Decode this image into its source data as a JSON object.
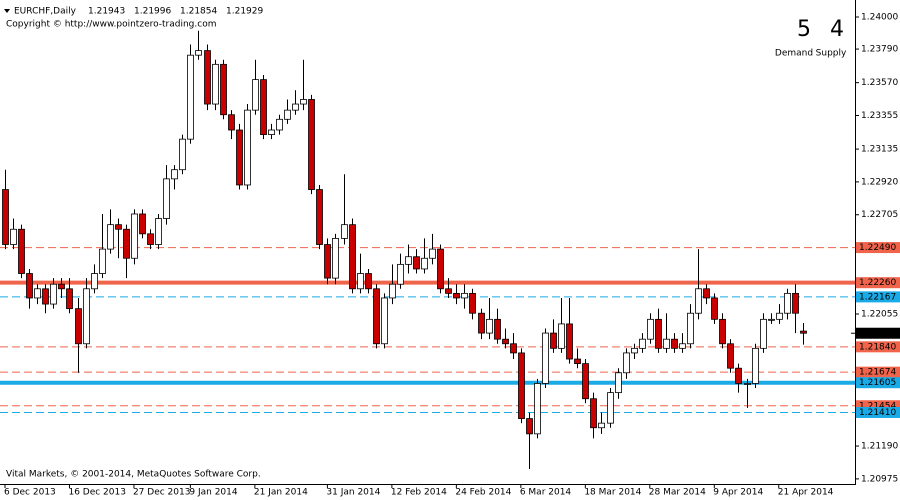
{
  "chart_data": {
    "type": "candlestick",
    "symbol_label": "EURCHF,Daily",
    "copyright": "Copyright © http://www.pointzero-trading.com",
    "footer": "Vital Markets, © 2001-2014, MetaQuotes Software Corp.",
    "zones": {
      "demand": {
        "count": 5,
        "label": "Demand"
      },
      "supply": {
        "count": 4,
        "label": "Supply"
      }
    },
    "demand_color": "#1aaae6",
    "supply_color": "#f0644c",
    "up_color": "#ffffff",
    "down_color": "#c80000",
    "grid": false,
    "ylim": [
      1.20935,
      1.24059
    ],
    "yticks": [
      {
        "value": 1.24,
        "label": "1.24000"
      },
      {
        "value": 1.2379,
        "label": "1.23790"
      },
      {
        "value": 1.2357,
        "label": "1.23570"
      },
      {
        "value": 1.23355,
        "label": "1.23355"
      },
      {
        "value": 1.23135,
        "label": "1.23135"
      },
      {
        "value": 1.2292,
        "label": "1.22920"
      },
      {
        "value": 1.22705,
        "label": "1.22705"
      },
      {
        "value": 1.22055,
        "label": "1.22055"
      },
      {
        "value": 1.2119,
        "label": "1.21190"
      },
      {
        "value": 1.20975,
        "label": "1.20975"
      }
    ],
    "categories": [
      "6 Dec 2013",
      null,
      null,
      null,
      null,
      null,
      null,
      null,
      "16 Dec 2013",
      null,
      null,
      null,
      null,
      null,
      null,
      null,
      "27 Dec 2013",
      null,
      null,
      null,
      null,
      null,
      null,
      "9 Jan 2014",
      null,
      null,
      null,
      null,
      null,
      null,
      null,
      "21 Jan 2014",
      null,
      null,
      null,
      null,
      null,
      null,
      null,
      null,
      "31 Jan 2014",
      null,
      null,
      null,
      null,
      null,
      null,
      null,
      "12 Feb 2014",
      null,
      null,
      null,
      null,
      null,
      null,
      null,
      "24 Feb 2014",
      null,
      null,
      null,
      null,
      null,
      null,
      null,
      "6 Mar 2014",
      null,
      null,
      null,
      null,
      null,
      null,
      null,
      "18 Mar 2014",
      null,
      null,
      null,
      null,
      null,
      null,
      null,
      "28 Mar 2014",
      null,
      null,
      null,
      null,
      null,
      null,
      null,
      "9 Apr 2014",
      null,
      null,
      null,
      null,
      null,
      null,
      null,
      "21 Apr 2014",
      null,
      null,
      null
    ],
    "open": [
      1.2287,
      1.2251,
      1.2261,
      1.2232,
      1.2216,
      1.2222,
      1.2212,
      1.2225,
      1.2222,
      1.2209,
      1.2186,
      1.2222,
      1.2232,
      1.2248,
      1.2264,
      1.2261,
      1.2242,
      1.2271,
      1.2258,
      1.2251,
      1.2268,
      1.2294,
      1.23,
      1.232,
      1.2375,
      1.2378,
      1.2343,
      1.2369,
      1.2336,
      1.2326,
      1.229,
      1.2339,
      1.2359,
      1.2323,
      1.2326,
      1.2333,
      1.2339,
      1.2343,
      1.2346,
      1.2287,
      1.2251,
      1.2229,
      1.2255,
      1.2264,
      1.2222,
      1.2232,
      1.2222,
      1.2186,
      1.2216,
      1.2225,
      1.2238,
      1.2243,
      1.2235,
      1.2242,
      1.2248,
      1.2222,
      1.2219,
      1.2216,
      1.2219,
      1.2206,
      1.2193,
      1.2202,
      1.2189,
      1.2186,
      1.218,
      1.2137,
      1.2127,
      1.216,
      1.2193,
      1.2183,
      1.2199,
      1.2176,
      1.2173,
      1.215,
      1.2131,
      1.2134,
      1.2154,
      1.2167,
      1.218,
      1.2183,
      1.2189,
      1.2202,
      1.2183,
      1.2189,
      1.2183,
      1.2186,
      1.2206,
      1.2222,
      1.2216,
      1.2202,
      1.2186,
      1.217,
      1.216,
      1.216,
      1.2183,
      1.2202,
      1.2202,
      1.2206,
      1.2219,
      1.21943
    ],
    "high": [
      1.23,
      1.2268,
      1.2264,
      1.2235,
      1.2225,
      1.2225,
      1.2229,
      1.2229,
      1.2229,
      1.2216,
      1.2229,
      1.2238,
      1.2271,
      1.2274,
      1.2268,
      1.2264,
      1.2274,
      1.2274,
      1.2261,
      1.2271,
      1.2303,
      1.2303,
      1.2323,
      1.2382,
      1.2391,
      1.2382,
      1.2372,
      1.2372,
      1.2339,
      1.233,
      1.2343,
      1.2372,
      1.2362,
      1.233,
      1.2336,
      1.2346,
      1.2352,
      1.2372,
      1.2349,
      1.229,
      1.2255,
      1.2258,
      1.2297,
      1.2268,
      1.2245,
      1.2235,
      1.2225,
      1.2219,
      1.2238,
      1.2245,
      1.2251,
      1.2248,
      1.2255,
      1.2258,
      1.2251,
      1.2229,
      1.2225,
      1.2225,
      1.2222,
      1.2209,
      1.2216,
      1.2209,
      1.2196,
      1.2193,
      1.2183,
      1.2141,
      1.2163,
      1.2196,
      1.2202,
      1.2216,
      1.2216,
      1.2183,
      1.2176,
      1.2154,
      1.2141,
      1.2157,
      1.217,
      1.2183,
      1.2186,
      1.2193,
      1.2206,
      1.2209,
      1.2206,
      1.2193,
      1.2193,
      1.2212,
      1.2248,
      1.2225,
      1.2219,
      1.2206,
      1.2189,
      1.2173,
      1.2163,
      1.2186,
      1.2206,
      1.2206,
      1.2212,
      1.2222,
      1.2225,
      1.21996
    ],
    "low": [
      1.2248,
      1.2248,
      1.2229,
      1.2209,
      1.2212,
      1.2206,
      1.2209,
      1.2216,
      1.2206,
      1.2167,
      1.2183,
      1.2219,
      1.2229,
      1.2245,
      1.2242,
      1.2229,
      1.2238,
      1.2255,
      1.2248,
      1.2248,
      1.2264,
      1.2287,
      1.2297,
      1.2317,
      1.2372,
      1.2339,
      1.2339,
      1.2333,
      1.232,
      1.2287,
      1.2287,
      1.2336,
      1.232,
      1.232,
      1.2323,
      1.233,
      1.2336,
      1.2339,
      1.2284,
      1.2248,
      1.2225,
      1.2225,
      1.2251,
      1.2219,
      1.2219,
      1.2219,
      1.2183,
      1.2183,
      1.2212,
      1.2222,
      1.2232,
      1.2232,
      1.2232,
      1.2238,
      1.2219,
      1.2216,
      1.2212,
      1.2209,
      1.2202,
      1.2189,
      1.2189,
      1.2186,
      1.2183,
      1.2176,
      1.2134,
      1.2104,
      1.2124,
      1.2157,
      1.218,
      1.218,
      1.2173,
      1.217,
      1.2147,
      1.2124,
      1.2127,
      1.2131,
      1.215,
      1.2163,
      1.2176,
      1.218,
      1.2186,
      1.218,
      1.218,
      1.218,
      1.218,
      1.2183,
      1.2202,
      1.2212,
      1.2199,
      1.2183,
      1.2167,
      1.2154,
      1.2144,
      1.2157,
      1.218,
      1.2199,
      1.2199,
      1.2202,
      1.2193,
      1.21854
    ],
    "close": [
      1.2251,
      1.2261,
      1.2232,
      1.2216,
      1.2222,
      1.2212,
      1.2225,
      1.2222,
      1.2209,
      1.2186,
      1.2222,
      1.2232,
      1.2248,
      1.2264,
      1.2261,
      1.2242,
      1.2271,
      1.2258,
      1.2251,
      1.2268,
      1.2294,
      1.23,
      1.232,
      1.2375,
      1.2378,
      1.2343,
      1.2369,
      1.2336,
      1.2326,
      1.229,
      1.2339,
      1.2359,
      1.2323,
      1.2326,
      1.2333,
      1.2339,
      1.2343,
      1.2346,
      1.2287,
      1.2251,
      1.2229,
      1.2255,
      1.2264,
      1.2222,
      1.2232,
      1.2222,
      1.2186,
      1.2216,
      1.2225,
      1.2238,
      1.2243,
      1.2235,
      1.2242,
      1.2248,
      1.2222,
      1.2219,
      1.2216,
      1.2219,
      1.2206,
      1.2193,
      1.2202,
      1.2189,
      1.2186,
      1.218,
      1.2137,
      1.2127,
      1.216,
      1.2193,
      1.2183,
      1.2199,
      1.2176,
      1.2173,
      1.215,
      1.2131,
      1.2134,
      1.2154,
      1.2167,
      1.218,
      1.2183,
      1.2189,
      1.2202,
      1.2183,
      1.2189,
      1.2183,
      1.2186,
      1.2206,
      1.2222,
      1.2216,
      1.2202,
      1.2186,
      1.217,
      1.216,
      1.216,
      1.2183,
      1.2202,
      1.2202,
      1.2206,
      1.2219,
      1.2206,
      1.21929
    ],
    "levels": [
      {
        "value": 1.2249,
        "label": "1.22490",
        "kind": "supply",
        "style": "dashed"
      },
      {
        "value": 1.2226,
        "label": "1.22260",
        "kind": "supply",
        "style": "thick"
      },
      {
        "value": 1.22167,
        "label": "1.22167",
        "kind": "demand",
        "style": "dashed"
      },
      {
        "value": 1.2184,
        "label": "1.21840",
        "kind": "supply",
        "style": "dashed"
      },
      {
        "value": 1.21674,
        "label": "1.21674",
        "kind": "supply",
        "style": "dashed"
      },
      {
        "value": 1.21605,
        "label": "1.21605",
        "kind": "demand",
        "style": "thick"
      },
      {
        "value": 1.21454,
        "label": "1.21454",
        "kind": "supply",
        "style": "dashed"
      },
      {
        "value": 1.2141,
        "label": "1.21410",
        "kind": "demand",
        "style": "dashed"
      }
    ]
  }
}
